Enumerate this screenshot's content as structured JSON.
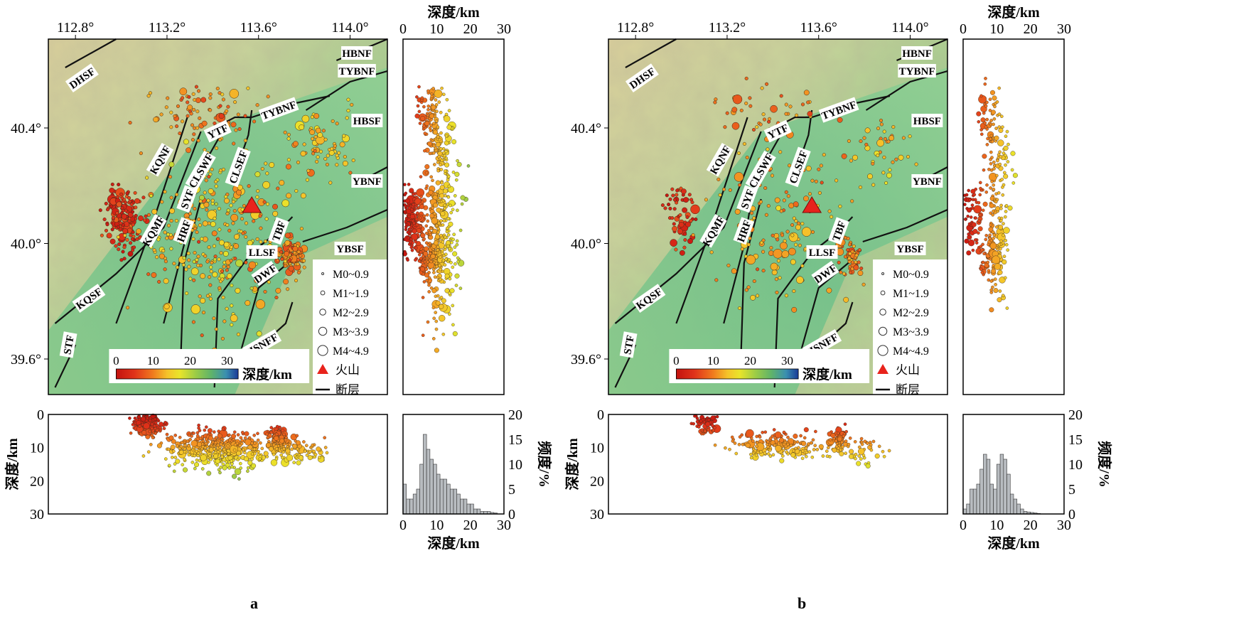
{
  "panels": [
    {
      "letter": "a",
      "lon_ticks": [
        "112.8°",
        "113.2°",
        "113.6°",
        "114.0°"
      ],
      "lat_ticks": [
        "40.4°",
        "40.0°",
        "39.6°"
      ],
      "faults": [
        "DHSF",
        "HBNF",
        "TYBNF",
        "TYBNF",
        "HBSF",
        "YTF",
        "KQNF",
        "CLSWF",
        "CLSEF",
        "YBNF",
        "SYF",
        "KQMF",
        "HRF",
        "TBF",
        "LLSF",
        "DWF",
        "YBSF",
        "KQSF",
        "STF",
        "HSNFF"
      ],
      "legend": {
        "magnitudes": [
          "M0~0.9",
          "M1~1.9",
          "M2~2.9",
          "M3~3.9",
          "M4~4.9"
        ],
        "volcano": "火山",
        "fault": "断层"
      },
      "colorbar": {
        "ticks": [
          "0",
          "10",
          "20",
          "30"
        ],
        "label": "深度/km"
      },
      "depth_side": {
        "top_label": "深度/km",
        "ticks": [
          "0",
          "10",
          "20",
          "30"
        ]
      },
      "depth_bottom": {
        "y_label": "深度/km",
        "ticks": [
          "0",
          "10",
          "20",
          "30"
        ]
      },
      "histogram": {
        "x_label": "深度/km",
        "y_label": "频度/%",
        "x_ticks": [
          "0",
          "10",
          "20",
          "30"
        ],
        "y_ticks": [
          "0",
          "5",
          "10",
          "15",
          "20"
        ]
      }
    },
    {
      "letter": "b",
      "lon_ticks": [
        "112.8°",
        "113.2°",
        "113.6°",
        "114.0°"
      ],
      "lat_ticks": [
        "40.4°",
        "40.0°",
        "39.6°"
      ],
      "faults": [
        "DHSF",
        "HBNF",
        "TYBNF",
        "TYBNF",
        "HBSF",
        "YTF",
        "KQNF",
        "CLSWF",
        "CLSEF",
        "YBNF",
        "SYF",
        "KQMF",
        "HRF",
        "TBF",
        "LLSF",
        "DWF",
        "YBSF",
        "KQSF",
        "STF",
        "HSNFF"
      ],
      "legend": {
        "magnitudes": [
          "M0~0.9",
          "M1~1.9",
          "M2~2.9",
          "M3~3.9",
          "M4~4.9"
        ],
        "volcano": "火山",
        "fault": "断层"
      },
      "colorbar": {
        "ticks": [
          "0",
          "10",
          "20",
          "30"
        ],
        "label": "深度/km"
      },
      "depth_side": {
        "top_label": "深度/km",
        "ticks": [
          "0",
          "10",
          "20",
          "30"
        ]
      },
      "depth_bottom": {
        "y_label": "深度/km",
        "ticks": [
          "0",
          "10",
          "20",
          "30"
        ]
      },
      "histogram": {
        "x_label": "深度/km",
        "y_label": "频度/%",
        "x_ticks": [
          "0",
          "10",
          "20",
          "30"
        ],
        "y_ticks": [
          "0",
          "5",
          "10",
          "15",
          "20"
        ]
      }
    }
  ],
  "chart_data": [
    {
      "type": "bar",
      "categories": [
        "0",
        "1",
        "2",
        "3",
        "4",
        "5",
        "6",
        "7",
        "8",
        "9",
        "10",
        "11",
        "12",
        "13",
        "14",
        "15",
        "16",
        "17",
        "18",
        "19",
        "20",
        "21",
        "22",
        "23",
        "24",
        "25",
        "26",
        "27",
        "28",
        "29"
      ],
      "values": [
        6,
        3,
        3,
        4,
        5,
        10,
        16,
        13,
        11,
        10,
        8,
        7,
        7,
        6,
        5,
        5,
        4,
        3,
        3,
        2,
        2,
        1,
        1,
        0.5,
        0.5,
        0.5,
        0.3,
        0.2,
        0,
        0
      ],
      "xlim": [
        0,
        30
      ],
      "ylim": [
        0,
        20
      ]
    },
    {
      "type": "bar",
      "categories": [
        "0",
        "1",
        "2",
        "3",
        "4",
        "5",
        "6",
        "7",
        "8",
        "9",
        "10",
        "11",
        "12",
        "13",
        "14",
        "15",
        "16",
        "17",
        "18",
        "19",
        "20",
        "21",
        "22",
        "23",
        "24",
        "25",
        "26",
        "27",
        "28",
        "29"
      ],
      "values": [
        1,
        2,
        5,
        5,
        6,
        9,
        12,
        11,
        6,
        5,
        10,
        12,
        11,
        8,
        4,
        3,
        2,
        1,
        0.5,
        0.4,
        0.3,
        0.2,
        0.1,
        0,
        0,
        0,
        0,
        0,
        0,
        0
      ],
      "xlim": [
        0,
        30
      ],
      "ylim": [
        0,
        20
      ]
    }
  ],
  "colors": {
    "depth_scale": [
      "#c3120f",
      "#e0331a",
      "#f07a1e",
      "#f5c32a",
      "#e9e42a",
      "#9ccc46",
      "#5fb36a",
      "#3a8fb0",
      "#1a3a98"
    ],
    "volcano": "#e8231c",
    "fault": "#111111"
  }
}
